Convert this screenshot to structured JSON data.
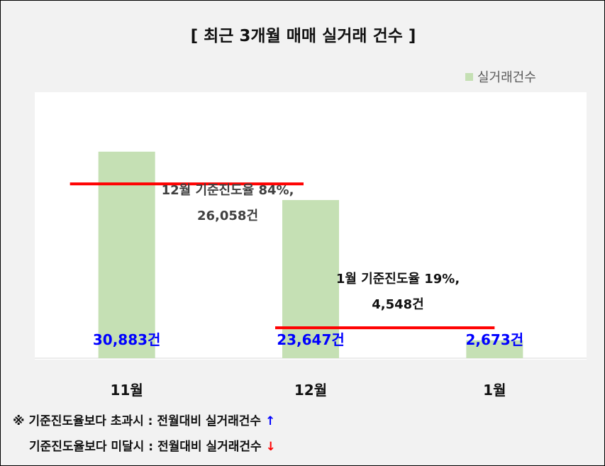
{
  "chart_data": {
    "type": "bar",
    "title": "[ 최근 3개월  매매 실거래 건수 ]",
    "categories": [
      "11월",
      "12월",
      "1월"
    ],
    "series": [
      {
        "name": "실거래건수",
        "values": [
          30883,
          23647,
          2673
        ],
        "value_labels": [
          "30,883건",
          "23,647건",
          "2,673건"
        ],
        "color": "#c5e0b4"
      }
    ],
    "ylim": [
      0,
      35000
    ],
    "grid": false,
    "legend": "top-right",
    "reference_lines": [
      {
        "label_line1": "12월 기준진도율 84%,",
        "label_line2": "26,058건",
        "value": 26058,
        "color": "#ff0000"
      },
      {
        "label_line1": "1월 기준진도율 19%,",
        "label_line2": "4,548건",
        "value": 4548,
        "color": "#ff0000"
      }
    ]
  },
  "notes": {
    "line1_prefix": "※ 기준진도율보다 초과시 : 전월대비 실거래건수 ",
    "line1_arrow": "↑",
    "line2_prefix": "기준진도율보다 미달시 : 전월대비 실거래건수 ",
    "line2_arrow": "↓",
    "up_color": "#0000ff",
    "down_color": "#ff0000"
  }
}
